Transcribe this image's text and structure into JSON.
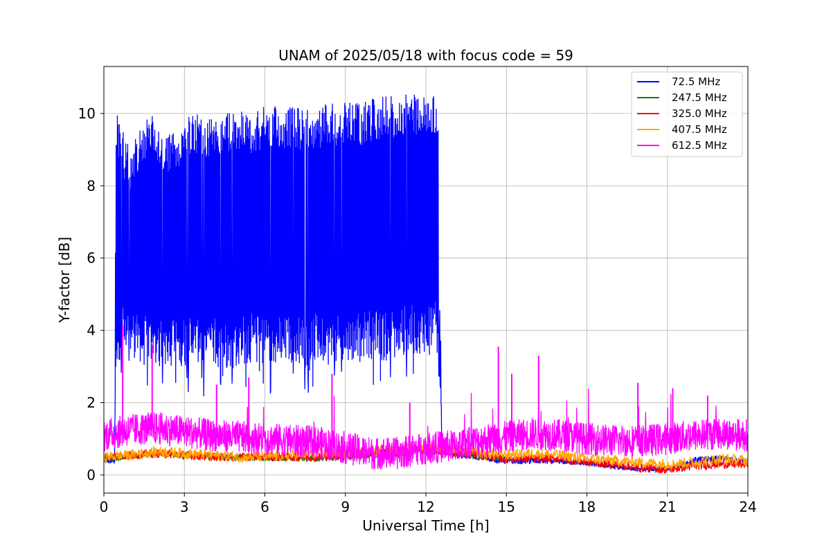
{
  "chart_data": {
    "type": "line",
    "title": "UNAM of 2025/05/18 with focus code = 59",
    "xlabel": "Universal Time [h]",
    "ylabel": "Y-factor [dB]",
    "xlim": [
      0,
      24
    ],
    "ylim": [
      -0.5,
      11.3
    ],
    "xticks": [
      0,
      3,
      6,
      9,
      12,
      15,
      18,
      21,
      24
    ],
    "yticks": [
      0,
      2,
      4,
      6,
      8,
      10
    ],
    "grid": true,
    "legend_position": "top-right",
    "series": [
      {
        "name": " 72.5 MHz",
        "color": "#0000ff",
        "description_points": {
          "x": [
            0.0,
            0.4,
            0.45,
            0.6,
            0.8,
            1.0,
            1.2,
            1.5,
            1.8,
            2.1,
            2.4,
            2.7,
            3.0,
            3.5,
            4.0,
            4.5,
            5.0,
            5.5,
            6.0,
            6.5,
            7.0,
            7.5,
            8.0,
            8.5,
            9.0,
            9.5,
            10.0,
            10.5,
            11.0,
            11.5,
            12.0,
            12.3,
            12.45,
            12.6,
            13.0,
            14.0,
            15.0,
            16.0,
            17.0,
            18.0,
            19.0,
            20.0,
            21.0,
            22.0,
            23.0,
            24.0
          ],
          "upper": [
            0.5,
            0.5,
            10.2,
            9.8,
            9.3,
            9.0,
            9.5,
            9.9,
            10.0,
            9.8,
            9.4,
            9.6,
            9.9,
            10.0,
            9.9,
            10.0,
            10.1,
            10.1,
            10.2,
            10.2,
            10.2,
            10.1,
            10.2,
            10.3,
            10.3,
            10.3,
            10.4,
            10.5,
            10.5,
            10.6,
            10.6,
            10.5,
            10.4,
            0.8,
            0.7,
            0.6,
            0.5,
            0.5,
            0.45,
            0.4,
            0.3,
            0.2,
            0.2,
            0.5,
            0.55,
            0.4
          ],
          "lower": [
            0.3,
            0.3,
            3.0,
            3.2,
            3.5,
            3.3,
            3.2,
            3.0,
            3.0,
            3.1,
            3.0,
            3.0,
            3.0,
            2.9,
            3.0,
            2.9,
            3.0,
            3.1,
            3.0,
            3.0,
            3.0,
            3.0,
            3.1,
            3.0,
            3.0,
            3.1,
            3.2,
            3.1,
            3.3,
            3.3,
            3.4,
            3.5,
            3.2,
            0.6,
            0.5,
            0.4,
            0.3,
            0.3,
            0.3,
            0.25,
            0.15,
            0.1,
            0.1,
            0.3,
            0.4,
            0.3
          ]
        }
      },
      {
        "name": "247.5 MHz",
        "color": "#008000",
        "description_points": {
          "x": [
            0,
            1,
            2,
            3,
            4,
            5,
            6,
            7,
            8,
            9,
            10,
            11,
            12,
            13,
            14,
            15
          ],
          "values": [
            0.45,
            0.5,
            0.6,
            0.55,
            0.5,
            0.48,
            0.46,
            0.45,
            0.45,
            0.5,
            0.55,
            0.6,
            0.65,
            0.6,
            0.5,
            0.45
          ]
        }
      },
      {
        "name": "325.0 MHz",
        "color": "#ff0000",
        "description_points": {
          "x": [
            0,
            1,
            2,
            3,
            4,
            5,
            6,
            7,
            8,
            9,
            10,
            11,
            12,
            13,
            14,
            15,
            16,
            17,
            18,
            19,
            20,
            21,
            22,
            23,
            24
          ],
          "values": [
            0.5,
            0.55,
            0.6,
            0.55,
            0.5,
            0.5,
            0.5,
            0.5,
            0.5,
            0.55,
            0.6,
            0.65,
            0.7,
            0.65,
            0.55,
            0.45,
            0.45,
            0.45,
            0.35,
            0.3,
            0.2,
            0.15,
            0.25,
            0.3,
            0.3
          ]
        }
      },
      {
        "name": "407.5 MHz",
        "color": "#ffa500",
        "description_points": {
          "x": [
            0,
            1,
            2,
            3,
            4,
            5,
            6,
            7,
            8,
            9,
            10,
            11,
            12,
            13,
            14,
            15,
            16,
            17,
            18,
            19,
            20,
            21,
            22,
            23,
            24
          ],
          "values": [
            0.5,
            0.55,
            0.65,
            0.6,
            0.55,
            0.5,
            0.5,
            0.55,
            0.6,
            0.6,
            0.65,
            0.7,
            0.75,
            0.7,
            0.6,
            0.55,
            0.6,
            0.55,
            0.45,
            0.4,
            0.35,
            0.3,
            0.35,
            0.45,
            0.4
          ]
        }
      },
      {
        "name": "612.5 MHz",
        "color": "#ff00ff",
        "description_points": {
          "x": [
            0,
            1,
            2,
            3,
            4,
            5,
            6,
            7,
            8,
            9,
            10,
            11,
            12,
            13,
            14,
            15,
            16,
            17,
            18,
            19,
            20,
            21,
            22,
            23,
            24
          ],
          "values": [
            1.1,
            1.25,
            1.3,
            1.2,
            1.1,
            1.05,
            1.0,
            0.95,
            0.9,
            0.75,
            0.6,
            0.6,
            0.75,
            0.8,
            0.95,
            1.05,
            1.15,
            1.1,
            1.0,
            0.95,
            0.95,
            1.0,
            1.1,
            1.15,
            1.1
          ]
        },
        "spikes": [
          {
            "x": 0.7,
            "y": 4.15
          },
          {
            "x": 1.8,
            "y": 3.6
          },
          {
            "x": 4.2,
            "y": 2.5
          },
          {
            "x": 5.4,
            "y": 2.7
          },
          {
            "x": 8.5,
            "y": 2.8
          },
          {
            "x": 11.4,
            "y": 2.0
          },
          {
            "x": 14.7,
            "y": 3.55
          },
          {
            "x": 15.2,
            "y": 2.8
          },
          {
            "x": 16.2,
            "y": 3.3
          },
          {
            "x": 19.9,
            "y": 2.55
          },
          {
            "x": 21.2,
            "y": 2.4
          },
          {
            "x": 22.5,
            "y": 2.2
          }
        ]
      }
    ]
  }
}
